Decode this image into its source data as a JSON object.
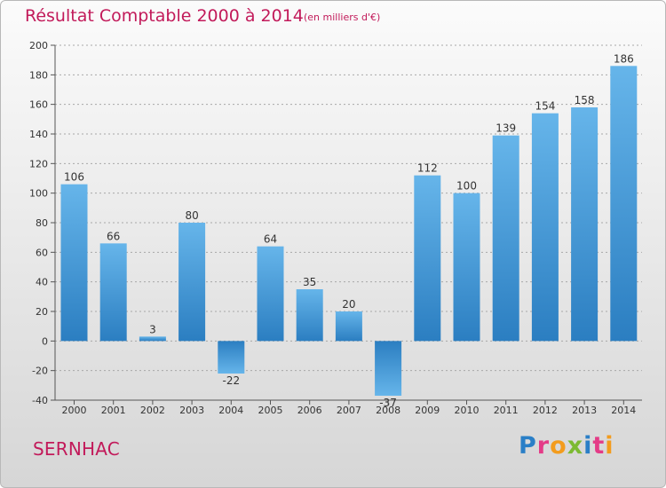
{
  "header": {
    "title": "Résultat Comptable 2000 à 2014",
    "subtitle": "(en milliers d'€)"
  },
  "footer": {
    "commune": "SERNHAC",
    "logo": "Proxiti",
    "logo_colors": [
      "#2a7fc7",
      "#e43b87",
      "#f39c1d",
      "#7cba32",
      "#2a7fc7",
      "#e43b87",
      "#f39c1d"
    ]
  },
  "colors": {
    "bar_light": "#66b5ea",
    "bar_dark": "#2b7ec1",
    "text": "#c21a5a"
  },
  "chart_data": {
    "type": "bar",
    "categories": [
      "2000",
      "2001",
      "2002",
      "2003",
      "2004",
      "2005",
      "2006",
      "2007",
      "2008",
      "2009",
      "2010",
      "2011",
      "2012",
      "2013",
      "2014"
    ],
    "values": [
      106,
      66,
      3,
      80,
      -22,
      64,
      35,
      20,
      -37,
      112,
      100,
      139,
      154,
      158,
      186
    ],
    "value_labels": [
      "106",
      "66",
      "3",
      "80",
      "-22",
      "64",
      "35",
      "20",
      "-37",
      "112",
      "100",
      "139",
      "154",
      "158",
      "186"
    ],
    "ylim": [
      -40,
      200
    ],
    "yticks": [
      -40,
      -20,
      0,
      20,
      40,
      60,
      80,
      100,
      120,
      140,
      160,
      180,
      200
    ],
    "grid": true,
    "title": "Résultat Comptable 2000 à 2014",
    "xlabel": "",
    "ylabel": ""
  }
}
